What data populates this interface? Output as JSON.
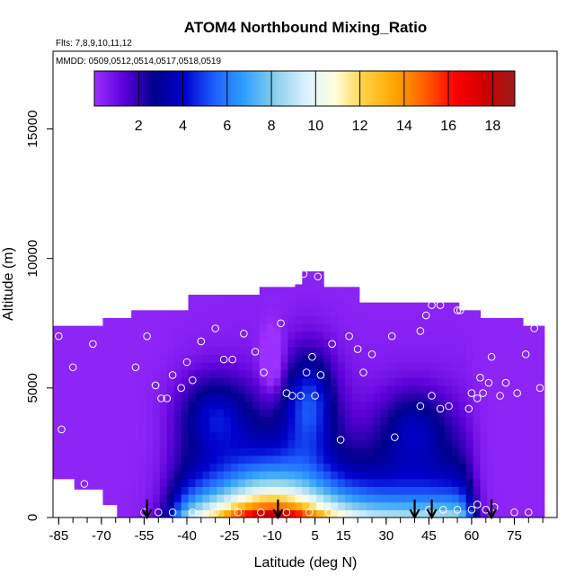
{
  "chart_data": {
    "type": "heatmap",
    "title": "ATOM4 Northbound Mixing_Ratio",
    "flights_label": "Flts: 7,8,9,10,11,12",
    "dates_label": "MMDD: 0509,0512,0514,0517,0518,0519",
    "xlabel": "Latitude (deg N)",
    "ylabel": "Altitude (m)",
    "xlim": [
      -87,
      90
    ],
    "ylim": [
      0,
      18000
    ],
    "x_ticks": [
      -85,
      -70,
      -55,
      -40,
      -25,
      -10,
      5,
      15,
      30,
      45,
      60,
      75
    ],
    "y_ticks": [
      0,
      5000,
      10000,
      15000
    ],
    "colorbar": {
      "range": [
        0,
        19
      ],
      "ticks": [
        2,
        4,
        6,
        8,
        10,
        12,
        14,
        16,
        18
      ],
      "colors": [
        "#9b30ff",
        "#5a00d8",
        "#00008b",
        "#0000cd",
        "#1e60ff",
        "#2fa0ff",
        "#87ceeb",
        "#d8f0ff",
        "#ffffe0",
        "#ffd040",
        "#ffa500",
        "#ff6000",
        "#ff0000",
        "#cd0000",
        "#9b1b1b"
      ]
    },
    "arrows_latitude": [
      -54,
      -8,
      40,
      46,
      67
    ],
    "field_notes": "Mixing ratio ~10-18 in low tropical boundary layer (peak near -10 deg N), decreasing to ~0-2 aloft and poleward",
    "sample_points": [
      [
        -85,
        7000
      ],
      [
        -84,
        3400
      ],
      [
        -80,
        5800
      ],
      [
        -76,
        1300
      ],
      [
        -73,
        6700
      ],
      [
        -58,
        5800
      ],
      [
        -54,
        7000
      ],
      [
        -51,
        5100
      ],
      [
        -49,
        4600
      ],
      [
        -47,
        4600
      ],
      [
        -45,
        5500
      ],
      [
        -42,
        5000
      ],
      [
        -40,
        6000
      ],
      [
        -38,
        5300
      ],
      [
        -35,
        6800
      ],
      [
        -30,
        7300
      ],
      [
        -27,
        6100
      ],
      [
        -24,
        6100
      ],
      [
        -20,
        7100
      ],
      [
        -16,
        6400
      ],
      [
        -13,
        5600
      ],
      [
        -7,
        7500
      ],
      [
        -5,
        4800
      ],
      [
        -3,
        4700
      ],
      [
        0,
        4700
      ],
      [
        1,
        9400
      ],
      [
        2,
        5600
      ],
      [
        4,
        6200
      ],
      [
        5,
        4700
      ],
      [
        6,
        9300
      ],
      [
        7,
        5500
      ],
      [
        11,
        6700
      ],
      [
        14,
        3000
      ],
      [
        17,
        7000
      ],
      [
        20,
        6500
      ],
      [
        22,
        5600
      ],
      [
        25,
        6300
      ],
      [
        32,
        7000
      ],
      [
        33,
        3100
      ],
      [
        34,
        8700
      ],
      [
        42,
        7200
      ],
      [
        44,
        7800
      ],
      [
        46,
        8200
      ],
      [
        48,
        8700
      ],
      [
        49,
        8200
      ],
      [
        50,
        8600
      ],
      [
        52,
        8600
      ],
      [
        53,
        8500
      ],
      [
        55,
        8000
      ],
      [
        56,
        8000
      ],
      [
        42,
        4300
      ],
      [
        46,
        4700
      ],
      [
        49,
        4200
      ],
      [
        52,
        4300
      ],
      [
        59,
        4200
      ],
      [
        60,
        4800
      ],
      [
        62,
        4600
      ],
      [
        62,
        8200
      ],
      [
        63,
        8300
      ],
      [
        63,
        5400
      ],
      [
        64,
        4800
      ],
      [
        66,
        5200
      ],
      [
        67,
        6200
      ],
      [
        70,
        4700
      ],
      [
        72,
        5200
      ],
      [
        76,
        4800
      ],
      [
        79,
        6300
      ],
      [
        82,
        7300
      ],
      [
        84,
        5000
      ],
      [
        -55,
        200
      ],
      [
        -50,
        200
      ],
      [
        -45,
        200
      ],
      [
        -38,
        200
      ],
      [
        -30,
        200
      ],
      [
        -22,
        200
      ],
      [
        -14,
        200
      ],
      [
        -5,
        200
      ],
      [
        3,
        200
      ],
      [
        10,
        200
      ],
      [
        45,
        300
      ],
      [
        50,
        300
      ],
      [
        55,
        300
      ],
      [
        60,
        300
      ],
      [
        62,
        500
      ],
      [
        65,
        300
      ],
      [
        68,
        400
      ],
      [
        75,
        200
      ],
      [
        80,
        200
      ]
    ]
  }
}
